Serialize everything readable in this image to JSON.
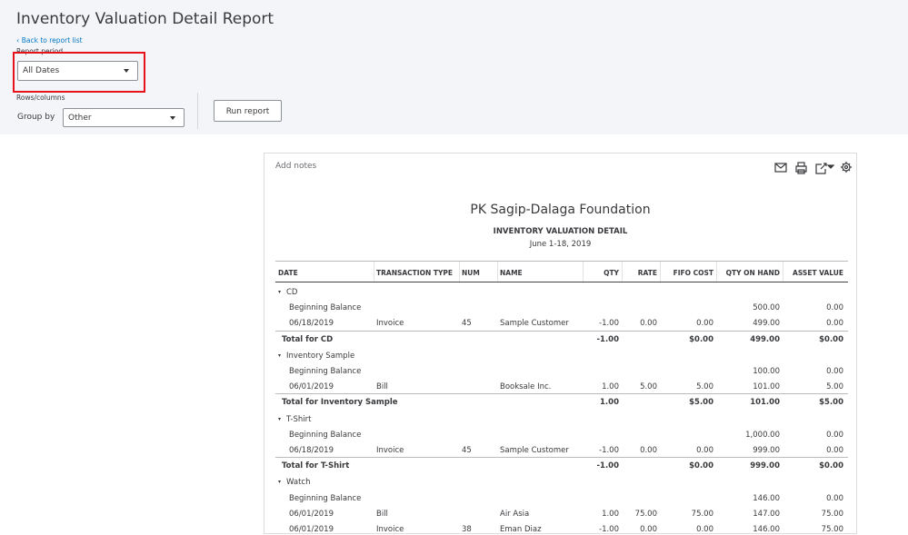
{
  "header": {
    "title": "Inventory Valuation Detail Report",
    "back_link": "Back to report list",
    "report_period_label": "Report period",
    "report_period_value": "All Dates",
    "rows_columns_label": "Rows/columns",
    "group_by_label": "Group by",
    "group_by_value": "Other",
    "run_button": "Run report"
  },
  "report": {
    "add_notes": "Add notes",
    "company": "PK Sagip-Dalaga Foundation",
    "title": "INVENTORY VALUATION DETAIL",
    "period": "June 1-18, 2019",
    "columns": [
      "DATE",
      "TRANSACTION TYPE",
      "NUM",
      "NAME",
      "QTY",
      "RATE",
      "FIFO COST",
      "QTY ON HAND",
      "ASSET VALUE"
    ],
    "groups": [
      {
        "name": "CD",
        "rows": [
          [
            "Beginning Balance",
            null,
            null,
            null,
            null,
            null,
            null,
            "500.00",
            "0.00"
          ],
          [
            "06/18/2019",
            "Invoice",
            "45",
            "Sample Customer",
            "-1.00",
            "0.00",
            "0.00",
            "499.00",
            "0.00"
          ]
        ],
        "total": [
          "Total for CD",
          null,
          null,
          null,
          "-1.00",
          null,
          "$0.00",
          "499.00",
          "$0.00"
        ]
      },
      {
        "name": "Inventory Sample",
        "rows": [
          [
            "Beginning Balance",
            null,
            null,
            null,
            null,
            null,
            null,
            "100.00",
            "0.00"
          ],
          [
            "06/01/2019",
            "Bill",
            null,
            "Booksale Inc.",
            "1.00",
            "5.00",
            "5.00",
            "101.00",
            "5.00"
          ]
        ],
        "total": [
          "Total for Inventory Sample",
          null,
          null,
          null,
          "1.00",
          null,
          "$5.00",
          "101.00",
          "$5.00"
        ]
      },
      {
        "name": "T-Shirt",
        "rows": [
          [
            "Beginning Balance",
            null,
            null,
            null,
            null,
            null,
            null,
            "1,000.00",
            "0.00"
          ],
          [
            "06/18/2019",
            "Invoice",
            "45",
            "Sample Customer",
            "-1.00",
            "0.00",
            "0.00",
            "999.00",
            "0.00"
          ]
        ],
        "total": [
          "Total for T-Shirt",
          null,
          null,
          null,
          "-1.00",
          null,
          "$0.00",
          "999.00",
          "$0.00"
        ]
      },
      {
        "name": "Watch",
        "rows": [
          [
            "Beginning Balance",
            null,
            null,
            null,
            null,
            null,
            null,
            "146.00",
            "0.00"
          ],
          [
            "06/01/2019",
            "Bill",
            null,
            "Air Asia",
            "1.00",
            "75.00",
            "75.00",
            "147.00",
            "75.00"
          ],
          [
            "06/01/2019",
            "Invoice",
            "38",
            "Eman Diaz",
            "-1.00",
            "0.00",
            "0.00",
            "146.00",
            "75.00"
          ]
        ],
        "total": null
      }
    ]
  }
}
